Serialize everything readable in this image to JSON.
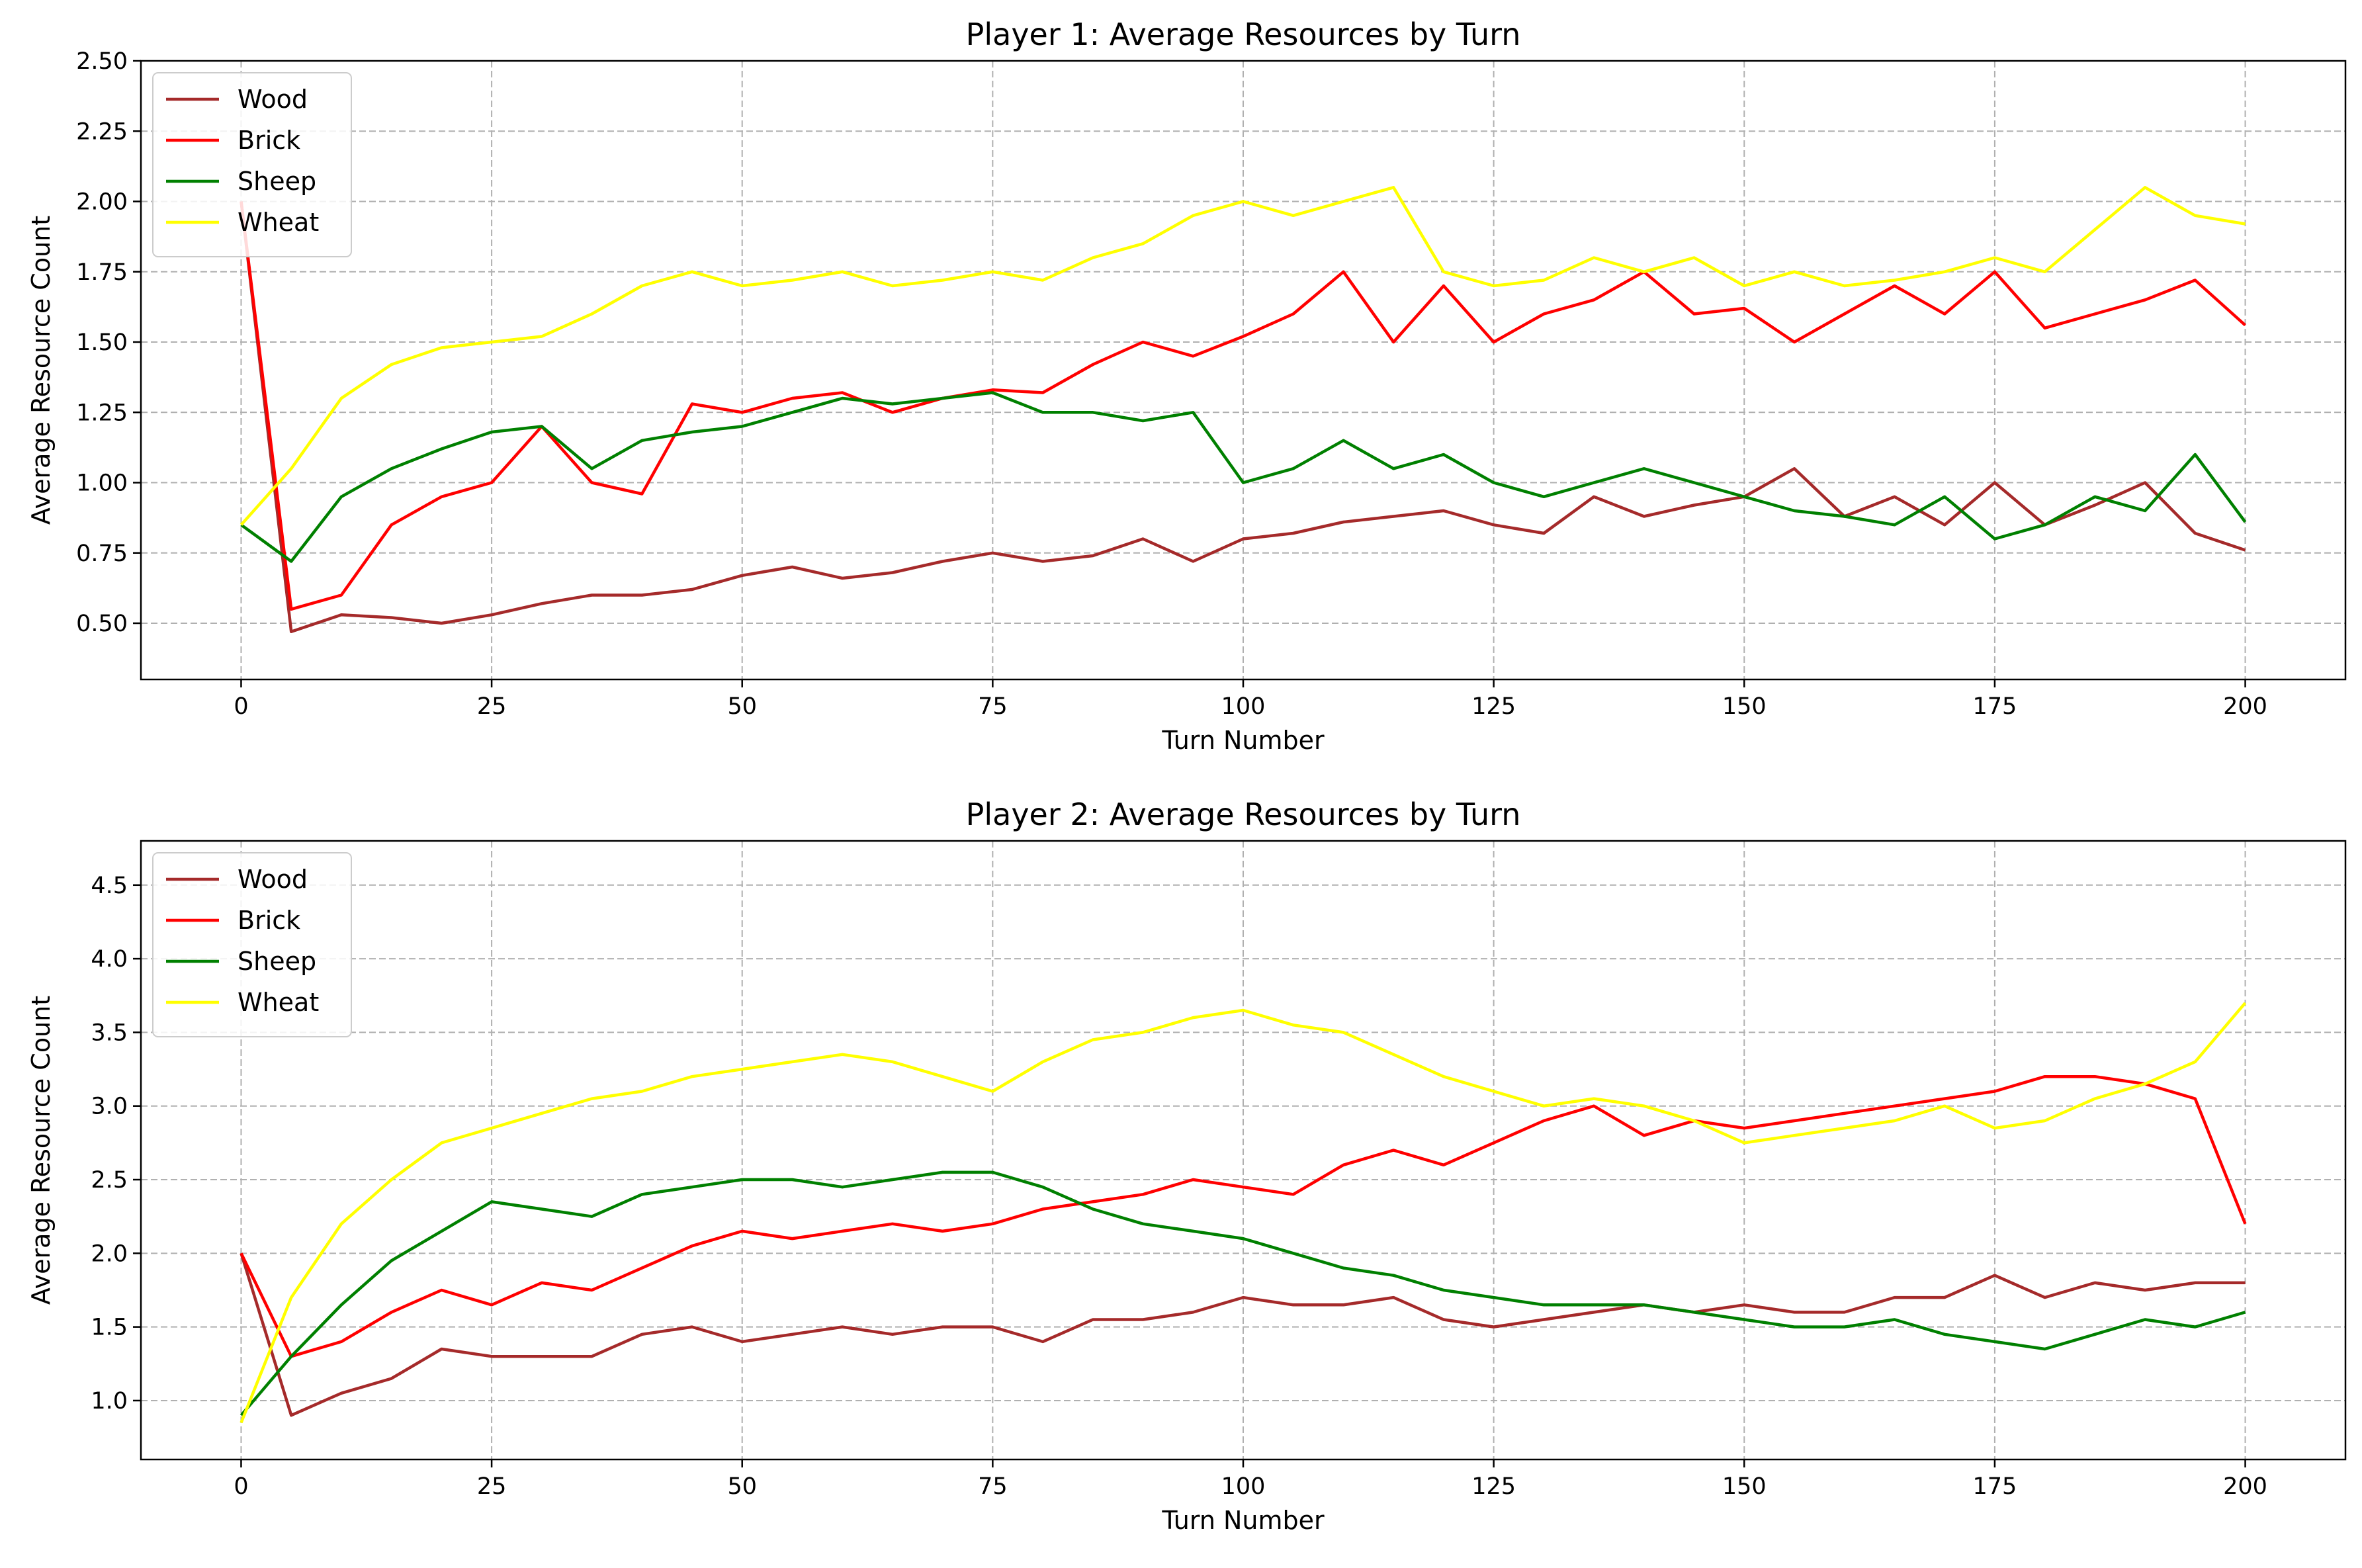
{
  "chart_data": [
    {
      "type": "line",
      "title": "Player 1: Average Resources by Turn",
      "xlabel": "Turn Number",
      "ylabel": "Average Resource Count",
      "xlim": [
        -10,
        210
      ],
      "ylim": [
        0.3,
        2.5
      ],
      "xticks": [
        0,
        25,
        50,
        75,
        100,
        125,
        150,
        175,
        200
      ],
      "yticks": [
        0.5,
        0.75,
        1.0,
        1.25,
        1.5,
        1.75,
        2.0,
        2.25,
        2.5
      ],
      "ytick_labels": [
        "0.50",
        "0.75",
        "1.00",
        "1.25",
        "1.50",
        "1.75",
        "2.00",
        "2.25",
        "2.50"
      ],
      "grid": true,
      "legend_position": "top-left",
      "x": {
        "start": 0,
        "step": 5,
        "end": 200
      },
      "series": [
        {
          "name": "Wood",
          "color": "#a52a2a",
          "values": [
            2.0,
            0.47,
            0.53,
            0.52,
            0.5,
            0.53,
            0.57,
            0.6,
            0.6,
            0.62,
            0.67,
            0.7,
            0.66,
            0.68,
            0.72,
            0.75,
            0.72,
            0.74,
            0.8,
            0.72,
            0.8,
            0.82,
            0.86,
            0.88,
            0.9,
            0.85,
            0.82,
            0.95,
            0.88,
            0.92,
            0.95,
            1.05,
            0.88,
            0.95,
            0.85,
            1.0,
            0.85,
            0.92,
            1.0,
            0.82,
            0.76
          ]
        },
        {
          "name": "Brick",
          "color": "#ff0000",
          "values": [
            2.0,
            0.55,
            0.6,
            0.85,
            0.95,
            1.0,
            1.2,
            1.0,
            0.96,
            1.28,
            1.25,
            1.3,
            1.32,
            1.25,
            1.3,
            1.33,
            1.32,
            1.42,
            1.5,
            1.45,
            1.52,
            1.6,
            1.75,
            1.5,
            1.7,
            1.5,
            1.6,
            1.65,
            1.75,
            1.6,
            1.62,
            1.5,
            1.6,
            1.7,
            1.6,
            1.75,
            1.55,
            1.6,
            1.65,
            1.72,
            1.56
          ]
        },
        {
          "name": "Sheep",
          "color": "#008000",
          "values": [
            0.85,
            0.72,
            0.95,
            1.05,
            1.12,
            1.18,
            1.2,
            1.05,
            1.15,
            1.18,
            1.2,
            1.25,
            1.3,
            1.28,
            1.3,
            1.32,
            1.25,
            1.25,
            1.22,
            1.25,
            1.0,
            1.05,
            1.15,
            1.05,
            1.1,
            1.0,
            0.95,
            1.0,
            1.05,
            1.0,
            0.95,
            0.9,
            0.88,
            0.85,
            0.95,
            0.8,
            0.85,
            0.95,
            0.9,
            1.1,
            0.86
          ]
        },
        {
          "name": "Wheat",
          "color": "#ffff00",
          "values": [
            0.85,
            1.05,
            1.3,
            1.42,
            1.48,
            1.5,
            1.52,
            1.6,
            1.7,
            1.75,
            1.7,
            1.72,
            1.75,
            1.7,
            1.72,
            1.75,
            1.72,
            1.8,
            1.85,
            1.95,
            2.0,
            1.95,
            2.0,
            2.05,
            1.75,
            1.7,
            1.72,
            1.8,
            1.75,
            1.8,
            1.7,
            1.75,
            1.7,
            1.72,
            1.75,
            1.8,
            1.75,
            1.9,
            2.05,
            1.95,
            1.92
          ]
        }
      ]
    },
    {
      "type": "line",
      "title": "Player 2: Average Resources by Turn",
      "xlabel": "Turn Number",
      "ylabel": "Average Resource Count",
      "xlim": [
        -10,
        210
      ],
      "ylim": [
        0.6,
        4.8
      ],
      "xticks": [
        0,
        25,
        50,
        75,
        100,
        125,
        150,
        175,
        200
      ],
      "yticks": [
        1.0,
        1.5,
        2.0,
        2.5,
        3.0,
        3.5,
        4.0,
        4.5
      ],
      "ytick_labels": [
        "1.0",
        "1.5",
        "2.0",
        "2.5",
        "3.0",
        "3.5",
        "4.0",
        "4.5"
      ],
      "grid": true,
      "legend_position": "top-left",
      "x": {
        "start": 0,
        "step": 5,
        "end": 200
      },
      "series": [
        {
          "name": "Wood",
          "color": "#a52a2a",
          "values": [
            2.0,
            0.9,
            1.05,
            1.15,
            1.35,
            1.3,
            1.3,
            1.3,
            1.45,
            1.5,
            1.4,
            1.45,
            1.5,
            1.45,
            1.5,
            1.5,
            1.4,
            1.55,
            1.55,
            1.6,
            1.7,
            1.65,
            1.65,
            1.7,
            1.55,
            1.5,
            1.55,
            1.6,
            1.65,
            1.6,
            1.65,
            1.6,
            1.6,
            1.7,
            1.7,
            1.85,
            1.7,
            1.8,
            1.75,
            1.8,
            1.8
          ]
        },
        {
          "name": "Brick",
          "color": "#ff0000",
          "values": [
            2.0,
            1.3,
            1.4,
            1.6,
            1.75,
            1.65,
            1.8,
            1.75,
            1.9,
            2.05,
            2.15,
            2.1,
            2.15,
            2.2,
            2.15,
            2.2,
            2.3,
            2.35,
            2.4,
            2.5,
            2.45,
            2.4,
            2.6,
            2.7,
            2.6,
            2.75,
            2.9,
            3.0,
            2.8,
            2.9,
            2.85,
            2.9,
            2.95,
            3.0,
            3.05,
            3.1,
            3.2,
            3.2,
            3.15,
            3.05,
            2.2
          ]
        },
        {
          "name": "Sheep",
          "color": "#008000",
          "values": [
            0.9,
            1.3,
            1.65,
            1.95,
            2.15,
            2.35,
            2.3,
            2.25,
            2.4,
            2.45,
            2.5,
            2.5,
            2.45,
            2.5,
            2.55,
            2.55,
            2.45,
            2.3,
            2.2,
            2.15,
            2.1,
            2.0,
            1.9,
            1.85,
            1.75,
            1.7,
            1.65,
            1.65,
            1.65,
            1.6,
            1.55,
            1.5,
            1.5,
            1.55,
            1.45,
            1.4,
            1.35,
            1.45,
            1.55,
            1.5,
            1.6
          ]
        },
        {
          "name": "Wheat",
          "color": "#ffff00",
          "values": [
            0.85,
            1.7,
            2.2,
            2.5,
            2.75,
            2.85,
            2.95,
            3.05,
            3.1,
            3.2,
            3.25,
            3.3,
            3.35,
            3.3,
            3.2,
            3.1,
            3.3,
            3.45,
            3.5,
            3.6,
            3.65,
            3.55,
            3.5,
            3.35,
            3.2,
            3.1,
            3.0,
            3.05,
            3.0,
            2.9,
            2.75,
            2.8,
            2.85,
            2.9,
            3.0,
            2.85,
            2.9,
            3.05,
            3.15,
            3.3,
            3.7
          ]
        }
      ]
    }
  ]
}
